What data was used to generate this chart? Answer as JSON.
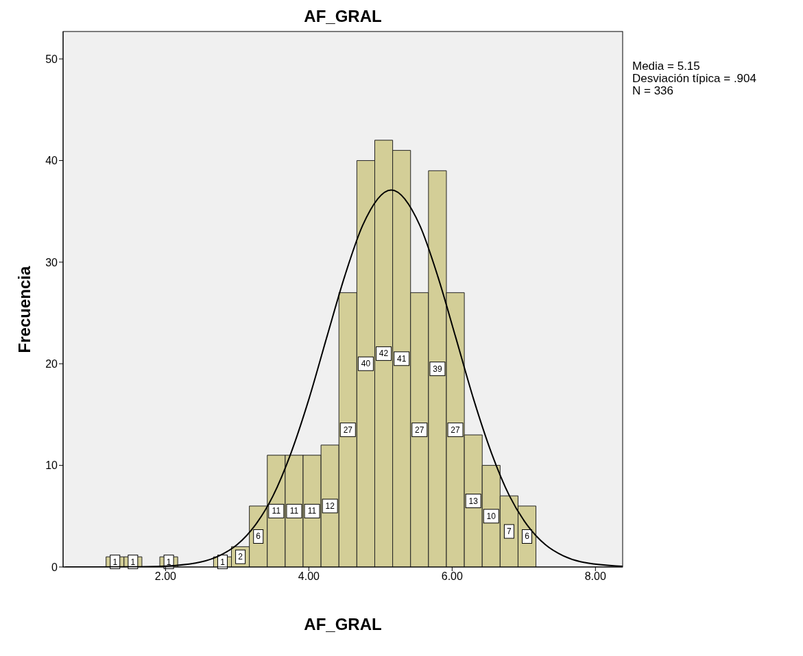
{
  "chart_data": {
    "type": "histogram",
    "title": "AF_GRAL",
    "xlabel": "AF_GRAL",
    "ylabel": "Frecuencia",
    "bins": [
      1.17,
      1.42,
      1.67,
      1.92,
      2.17,
      2.42,
      2.67,
      2.92,
      3.17,
      3.42,
      3.67,
      3.92,
      4.17,
      4.42,
      4.67,
      4.92,
      5.17,
      5.42,
      5.67,
      5.92,
      6.17,
      6.42,
      6.67,
      6.92,
      7.17
    ],
    "values": [
      1,
      1,
      0,
      1,
      0,
      0,
      1,
      2,
      6,
      11,
      11,
      11,
      12,
      27,
      40,
      42,
      41,
      27,
      39,
      27,
      13,
      10,
      7,
      6
    ],
    "value_labels": [
      "1",
      "1",
      null,
      "1",
      null,
      null,
      "1",
      "2",
      "6",
      "11",
      "11",
      "11",
      "12",
      "27",
      "40",
      "42",
      "41",
      "27",
      "39",
      "27",
      "13",
      "10",
      "7",
      "6"
    ],
    "color": "#d3ce97",
    "series": [
      {
        "type": "line",
        "color": "#000000",
        "x": [
          0.6,
          1.5,
          2.0,
          2.5,
          2.75,
          3.0,
          3.25,
          3.5,
          3.75,
          4.0,
          4.25,
          4.5,
          4.75,
          5.15,
          5.55,
          5.8,
          6.05,
          6.3,
          6.55,
          6.8,
          7.05,
          7.3,
          7.55,
          7.8,
          8.38
        ],
        "values": [
          0,
          0.01,
          0.09,
          0.5,
          1.1,
          2.2,
          4.1,
          7.0,
          11.2,
          16.5,
          22.6,
          28.6,
          33.6,
          37.1,
          33.6,
          28.6,
          22.6,
          16.5,
          11.2,
          7.0,
          4.1,
          2.2,
          1.1,
          0.5,
          0.06
        ]
      }
    ],
    "xlim": [
      0.57,
      8.38
    ],
    "ylim": [
      0,
      52.7
    ],
    "xticks": [
      {
        "value": 2,
        "label": "2.00"
      },
      {
        "value": 4,
        "label": "4.00"
      },
      {
        "value": 6,
        "label": "6.00"
      },
      {
        "value": 8,
        "label": "8.00"
      }
    ],
    "yticks": [
      0,
      10,
      20,
      30,
      40,
      50
    ],
    "annotations": [
      "Media = 5.15",
      "Desviación típica = .904",
      "N = 336"
    ]
  }
}
